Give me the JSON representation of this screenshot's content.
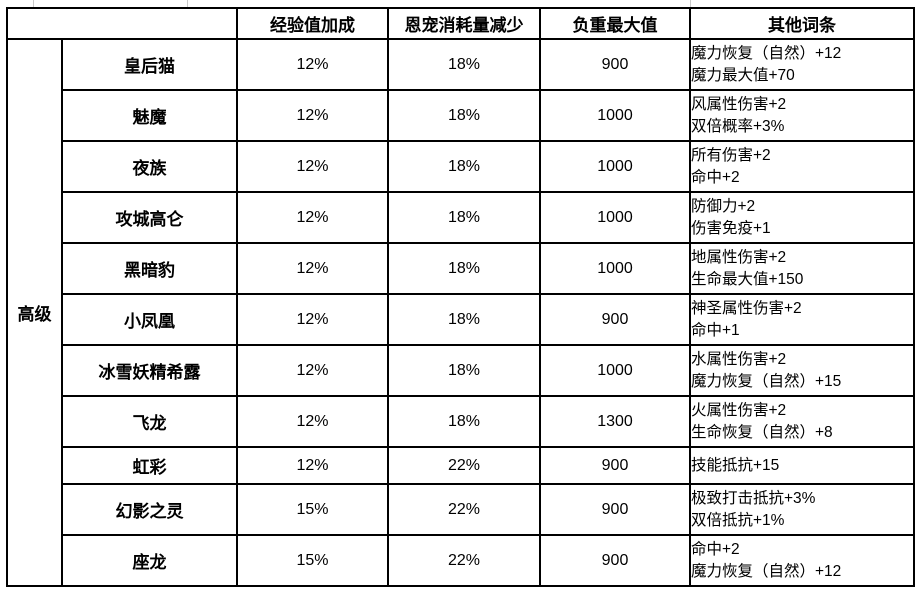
{
  "chart_data": {
    "type": "table",
    "corner_label": "",
    "tier_label": "高级",
    "columns": [
      "经验值加成",
      "恩宠消耗量减少",
      "负重最大值",
      "其他词条"
    ],
    "rows": [
      {
        "name": "皇后猫",
        "exp_bonus": "12%",
        "favor_consumption_reduction": "18%",
        "max_weight": "900",
        "other_entries": [
          "魔力恢复（自然）+12",
          "魔力最大值+70"
        ]
      },
      {
        "name": "魅魔",
        "exp_bonus": "12%",
        "favor_consumption_reduction": "18%",
        "max_weight": "1000",
        "other_entries": [
          "风属性伤害+2",
          "双倍概率+3%"
        ]
      },
      {
        "name": "夜族",
        "exp_bonus": "12%",
        "favor_consumption_reduction": "18%",
        "max_weight": "1000",
        "other_entries": [
          "所有伤害+2",
          "命中+2"
        ]
      },
      {
        "name": "攻城高仑",
        "exp_bonus": "12%",
        "favor_consumption_reduction": "18%",
        "max_weight": "1000",
        "other_entries": [
          "防御力+2",
          "伤害免疫+1"
        ]
      },
      {
        "name": "黑暗豹",
        "exp_bonus": "12%",
        "favor_consumption_reduction": "18%",
        "max_weight": "1000",
        "other_entries": [
          "地属性伤害+2",
          "生命最大值+150"
        ]
      },
      {
        "name": "小凤凰",
        "exp_bonus": "12%",
        "favor_consumption_reduction": "18%",
        "max_weight": "900",
        "other_entries": [
          "神圣属性伤害+2",
          "命中+1"
        ]
      },
      {
        "name": "冰雪妖精希露",
        "exp_bonus": "12%",
        "favor_consumption_reduction": "18%",
        "max_weight": "1000",
        "other_entries": [
          "水属性伤害+2",
          "魔力恢复（自然）+15"
        ]
      },
      {
        "name": "飞龙",
        "exp_bonus": "12%",
        "favor_consumption_reduction": "18%",
        "max_weight": "1300",
        "other_entries": [
          "火属性伤害+2",
          "生命恢复（自然）+8"
        ]
      },
      {
        "name": "虹彩",
        "exp_bonus": "12%",
        "favor_consumption_reduction": "22%",
        "max_weight": "900",
        "other_entries": [
          "技能抵抗+15"
        ]
      },
      {
        "name": "幻影之灵",
        "exp_bonus": "15%",
        "favor_consumption_reduction": "22%",
        "max_weight": "900",
        "other_entries": [
          "极致打击抵抗+3%",
          "双倍抵抗+1%"
        ]
      },
      {
        "name": "座龙",
        "exp_bonus": "15%",
        "favor_consumption_reduction": "22%",
        "max_weight": "900",
        "other_entries": [
          "命中+2",
          "魔力恢复（自然）+12"
        ]
      }
    ]
  }
}
